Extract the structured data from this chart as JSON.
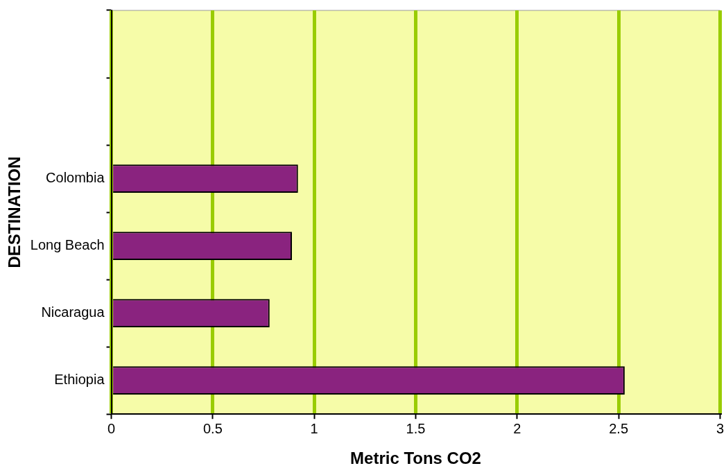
{
  "chart_data": {
    "type": "bar",
    "orientation": "horizontal",
    "categories": [
      null,
      null,
      "Colombia",
      "Long Beach",
      "Nicaragua",
      "Ethiopia"
    ],
    "values": [
      null,
      null,
      0.92,
      0.89,
      0.78,
      2.53
    ],
    "color": "#8a237f",
    "xlabel": "Metric Tons CO2",
    "ylabel": "DESTINATION",
    "xlim": [
      0,
      3
    ],
    "xticks": [
      0,
      0.5,
      1,
      1.5,
      2,
      2.5,
      3
    ],
    "grid": "x",
    "legend": false
  }
}
